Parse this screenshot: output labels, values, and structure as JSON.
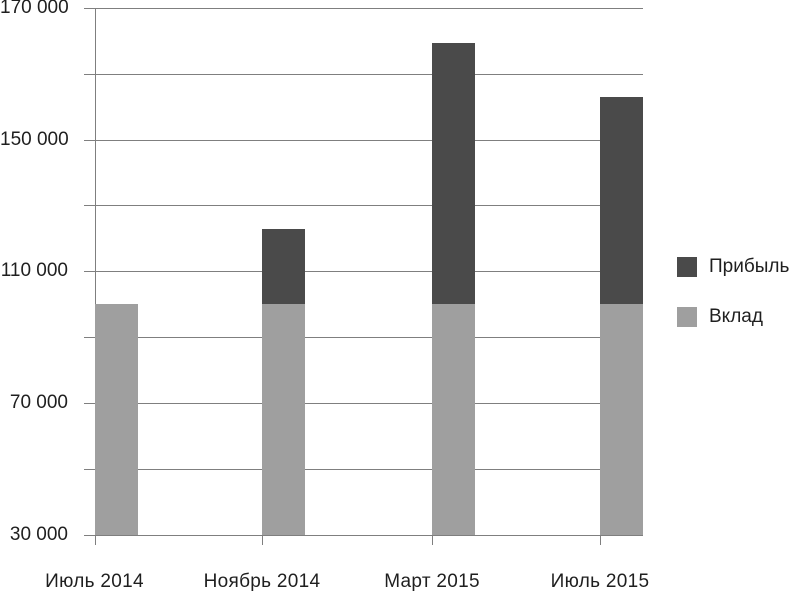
{
  "chart_data": {
    "type": "bar",
    "stacked": true,
    "title": "",
    "categories": [
      "Июль 2014",
      "Ноябрь 2014",
      "Март 2015",
      "Июль 2015"
    ],
    "series": [
      {
        "name": "Вклад",
        "color": "#9f9f9f",
        "values": [
          100000,
          100000,
          100000,
          100000
        ]
      },
      {
        "name": "Прибыль",
        "color": "#4a4a4a",
        "values": [
          0,
          23000,
          64000,
          56000
        ]
      }
    ],
    "totals_estimated": [
      100000,
      123000,
      164000,
      156000
    ],
    "y_axis": {
      "tick_labels": [
        "170 000",
        "150 000",
        "110 000",
        "70 000",
        "30 000"
      ],
      "labeled_gridline_indices": [
        0,
        2,
        4,
        6,
        8
      ],
      "gridline_count": 9,
      "grid": true,
      "axis_color": "#7f7f7f",
      "text_color": "#1f1f1f"
    },
    "x_axis": {
      "labels": [
        "Июль 2014",
        "Ноябрь 2014",
        "Март 2015",
        "Июль 2015"
      ]
    },
    "legend": {
      "position": "right",
      "entries": [
        {
          "label": "Прибыль",
          "color": "#4a4a4a"
        },
        {
          "label": "Вклад",
          "color": "#9f9f9f"
        }
      ]
    },
    "render": {
      "bar_width_frac": 0.0787,
      "bars": [
        {
          "x_frac": 0.0,
          "deposit_frac": 0.4387,
          "profit_frac": 0.0
        },
        {
          "x_frac": 0.3054,
          "deposit_frac": 0.4387,
          "profit_frac": 0.1415
        },
        {
          "x_frac": 0.6154,
          "deposit_frac": 0.4387,
          "profit_frac": 0.4948
        },
        {
          "x_frac": 0.9216,
          "deposit_frac": 0.4387,
          "profit_frac": 0.3932
        }
      ]
    }
  }
}
